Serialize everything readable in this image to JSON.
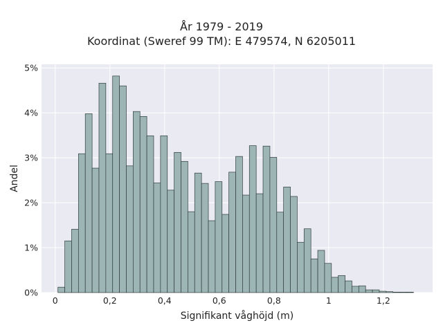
{
  "chart_data": {
    "type": "bar",
    "title": "År 1979 - 2019",
    "subtitle": "Koordinat (Sweref 99 TM): E 479574, N 6205011",
    "xlabel": "Signifikant våghöjd (m)",
    "ylabel": "Andel",
    "xlim": [
      -0.05,
      1.38
    ],
    "ylim": [
      0,
      0.0508
    ],
    "xticks": [
      0,
      0.2,
      0.4,
      0.6,
      0.8,
      1.0,
      1.2
    ],
    "xtick_labels": [
      "0",
      "0,2",
      "0,4",
      "0,6",
      "0,8",
      "1",
      "1,2"
    ],
    "yticks": [
      0,
      0.01,
      0.02,
      0.03,
      0.04,
      0.05
    ],
    "ytick_labels": [
      "0%",
      "1%",
      "2%",
      "3%",
      "4%",
      "5%"
    ],
    "bin_width": 0.025,
    "bin_starts": [
      0.01,
      0.035,
      0.06,
      0.085,
      0.11,
      0.135,
      0.16,
      0.185,
      0.21,
      0.235,
      0.26,
      0.285,
      0.31,
      0.335,
      0.36,
      0.385,
      0.41,
      0.435,
      0.46,
      0.485,
      0.51,
      0.535,
      0.56,
      0.585,
      0.61,
      0.635,
      0.66,
      0.685,
      0.71,
      0.735,
      0.76,
      0.785,
      0.81,
      0.835,
      0.86,
      0.885,
      0.91,
      0.935,
      0.96,
      0.985,
      1.01,
      1.035,
      1.06,
      1.085,
      1.11,
      1.135,
      1.16,
      1.185,
      1.21,
      1.235,
      1.26,
      1.285
    ],
    "values": [
      0.0012,
      0.0115,
      0.0141,
      0.0309,
      0.0398,
      0.0277,
      0.0466,
      0.0309,
      0.0482,
      0.046,
      0.0282,
      0.0403,
      0.0392,
      0.0349,
      0.0244,
      0.0349,
      0.0228,
      0.0312,
      0.0292,
      0.018,
      0.0266,
      0.0243,
      0.016,
      0.0247,
      0.0174,
      0.0268,
      0.0303,
      0.0217,
      0.0327,
      0.022,
      0.0326,
      0.0301,
      0.0179,
      0.0235,
      0.0214,
      0.0112,
      0.0142,
      0.0075,
      0.0094,
      0.0065,
      0.0034,
      0.0038,
      0.0026,
      0.0014,
      0.0015,
      0.0006,
      0.0006,
      0.0003,
      0.0002,
      0.0001,
      0.0001,
      0.0001
    ],
    "grid": true,
    "bar_color": "#9db5b5",
    "bar_edge_color": "#2f3d3d",
    "background_color": "#eaeaf2"
  }
}
